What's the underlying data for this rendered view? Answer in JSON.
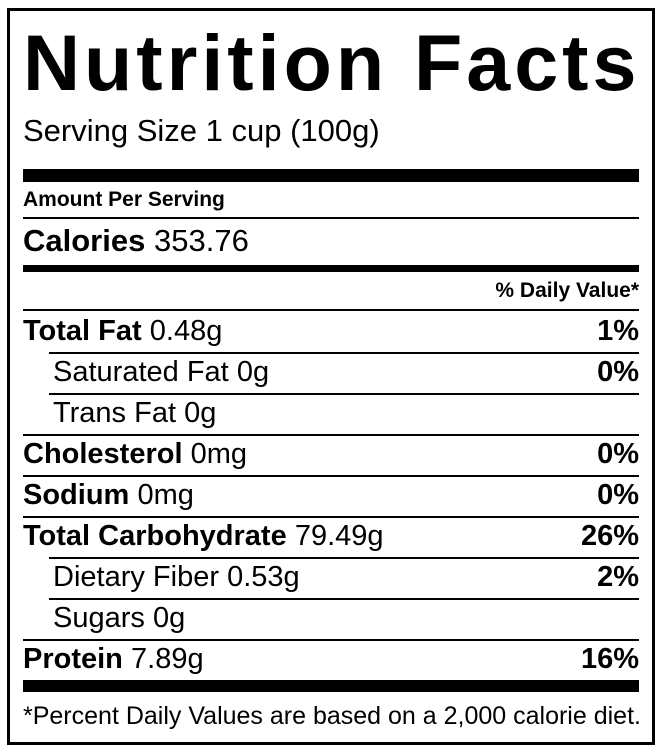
{
  "label": {
    "title": "Nutrition Facts",
    "serving_size": "Serving Size 1 cup (100g)",
    "amount_per_serving": "Amount Per Serving",
    "calories_label": "Calories",
    "calories_value": "353.76",
    "daily_value_header": "% Daily Value*",
    "rows": [
      {
        "label": "Total Fat",
        "amount": "0.48g",
        "daily_value": "1%"
      },
      {
        "label": "Saturated Fat",
        "amount": "0g",
        "daily_value": "0%"
      },
      {
        "label": "Trans Fat",
        "amount": "0g",
        "daily_value": ""
      },
      {
        "label": "Cholesterol",
        "amount": "0mg",
        "daily_value": "0%"
      },
      {
        "label": "Sodium",
        "amount": "0mg",
        "daily_value": "0%"
      },
      {
        "label": "Total Carbohydrate",
        "amount": "79.49g",
        "daily_value": "26%"
      },
      {
        "label": "Dietary Fiber",
        "amount": "0.53g",
        "daily_value": "2%"
      },
      {
        "label": "Sugars",
        "amount": "0g",
        "daily_value": ""
      },
      {
        "label": "Protein",
        "amount": "7.89g",
        "daily_value": "16%"
      }
    ],
    "footnote": "*Percent Daily Values are based on a 2,000 calorie diet.",
    "colors": {
      "text": "#000000",
      "background": "#ffffff",
      "rule": "#000000"
    }
  }
}
